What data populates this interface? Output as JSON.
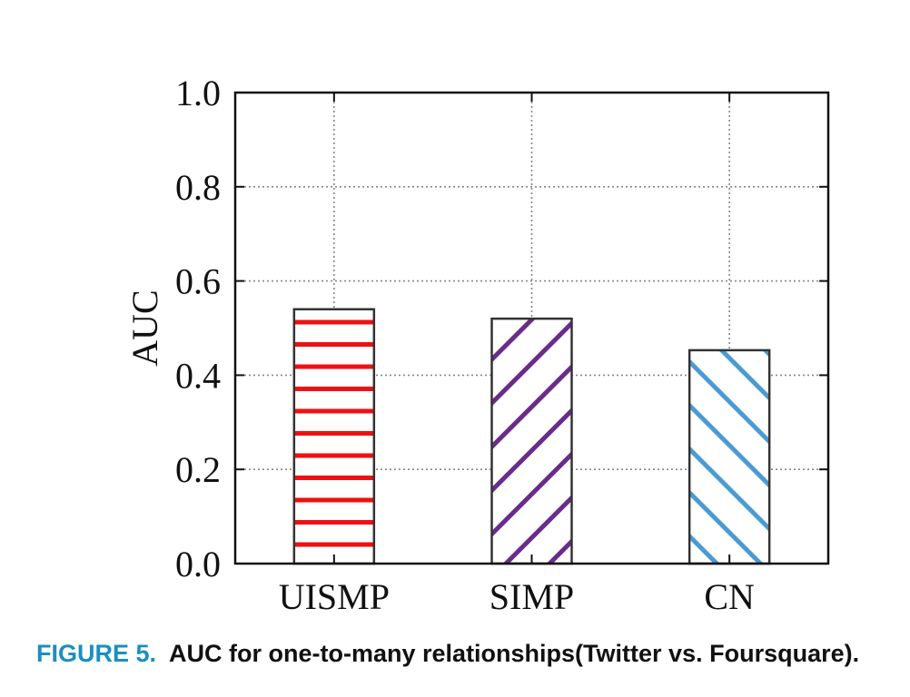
{
  "chart_data": {
    "type": "bar",
    "title": "",
    "xlabel": "",
    "ylabel": "AUC",
    "ylim": [
      0,
      1.0
    ],
    "yticks": [
      "0.0",
      "0.2",
      "0.4",
      "0.6",
      "0.8",
      "1.0"
    ],
    "categories": [
      "UISMP",
      "SIMP",
      "CN"
    ],
    "values": [
      0.54,
      0.52,
      0.453
    ],
    "grid": true,
    "legend": "none",
    "colors": [
      "#ee1111",
      "#6a2c8a",
      "#4a9bd4"
    ],
    "hatches": [
      "horizontal",
      "diagonal-down",
      "diagonal-up"
    ]
  },
  "caption": {
    "label": "FIGURE 5.",
    "text": "AUC for one-to-many relationships(Twitter vs. Foursquare)."
  },
  "colors": {
    "caption_label": "#1a8fc1",
    "axis": "#111111",
    "grid": "#888888",
    "bar_outline": "#333333"
  }
}
